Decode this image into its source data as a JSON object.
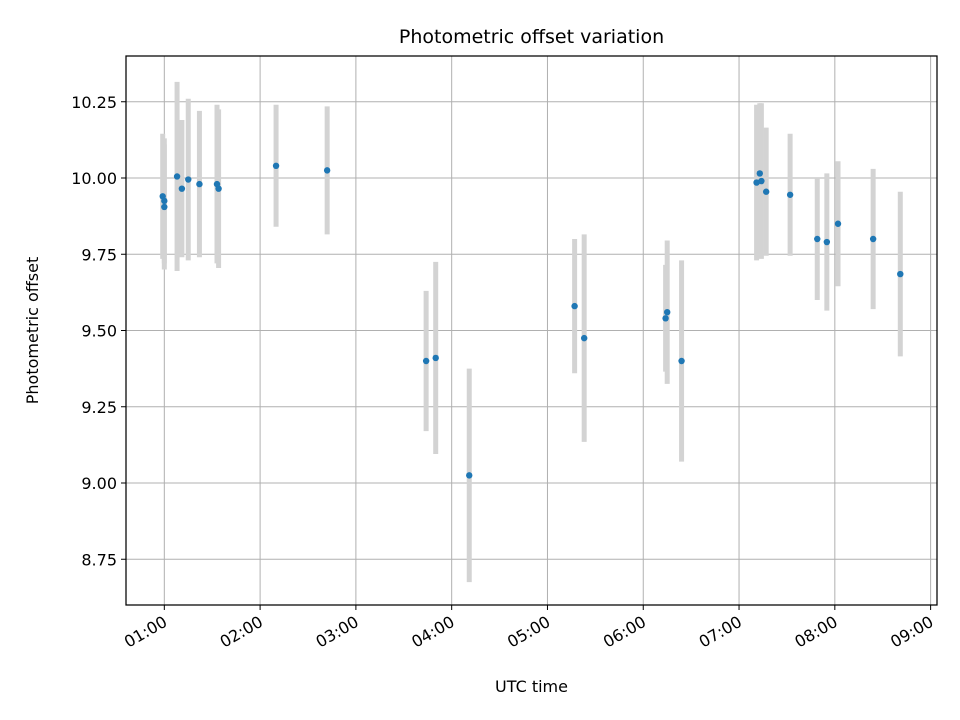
{
  "chart_data": {
    "type": "scatter",
    "title": "Photometric offset variation",
    "xlabel": "UTC time",
    "ylabel": "Photometric offset",
    "xlim": [
      "00:36",
      "09:04"
    ],
    "ylim": [
      8.6,
      10.4
    ],
    "grid": true,
    "x_ticks": [
      "01:00",
      "02:00",
      "03:00",
      "04:00",
      "05:00",
      "06:00",
      "07:00",
      "08:00",
      "09:00"
    ],
    "y_ticks": [
      8.75,
      9.0,
      9.25,
      9.5,
      9.75,
      10.0,
      10.25
    ],
    "y_tick_labels": [
      "8.75",
      "9.00",
      "9.25",
      "9.50",
      "9.75",
      "10.00",
      "10.25"
    ],
    "point_color": "#1f77b4",
    "errorbar_color": "#d3d3d3",
    "points": [
      {
        "t": "00:59",
        "y": 9.94,
        "err": 0.205
      },
      {
        "t": "01:00",
        "y": 9.925,
        "err": 0.205
      },
      {
        "t": "01:00",
        "y": 9.905,
        "err": 0.205
      },
      {
        "t": "01:08",
        "y": 10.005,
        "err": 0.31
      },
      {
        "t": "01:11",
        "y": 9.965,
        "err": 0.225
      },
      {
        "t": "01:15",
        "y": 9.995,
        "err": 0.265
      },
      {
        "t": "01:22",
        "y": 9.98,
        "err": 0.24
      },
      {
        "t": "01:33",
        "y": 9.98,
        "err": 0.26
      },
      {
        "t": "01:34",
        "y": 9.965,
        "err": 0.26
      },
      {
        "t": "02:10",
        "y": 10.04,
        "err": 0.2
      },
      {
        "t": "02:42",
        "y": 10.025,
        "err": 0.21
      },
      {
        "t": "03:44",
        "y": 9.4,
        "err": 0.23
      },
      {
        "t": "03:50",
        "y": 9.41,
        "err": 0.315
      },
      {
        "t": "04:11",
        "y": 9.025,
        "err": 0.35
      },
      {
        "t": "05:17",
        "y": 9.58,
        "err": 0.22
      },
      {
        "t": "05:23",
        "y": 9.475,
        "err": 0.34
      },
      {
        "t": "06:14",
        "y": 9.54,
        "err": 0.175
      },
      {
        "t": "06:15",
        "y": 9.56,
        "err": 0.235
      },
      {
        "t": "06:24",
        "y": 9.4,
        "err": 0.33
      },
      {
        "t": "07:11",
        "y": 9.985,
        "err": 0.255
      },
      {
        "t": "07:13",
        "y": 10.015,
        "err": 0.23
      },
      {
        "t": "07:14",
        "y": 9.99,
        "err": 0.255
      },
      {
        "t": "07:17",
        "y": 9.955,
        "err": 0.21
      },
      {
        "t": "07:32",
        "y": 9.945,
        "err": 0.2
      },
      {
        "t": "07:49",
        "y": 9.8,
        "err": 0.2
      },
      {
        "t": "07:55",
        "y": 9.79,
        "err": 0.225
      },
      {
        "t": "08:02",
        "y": 9.85,
        "err": 0.205
      },
      {
        "t": "08:24",
        "y": 9.8,
        "err": 0.23
      },
      {
        "t": "08:41",
        "y": 9.685,
        "err": 0.27
      }
    ]
  }
}
